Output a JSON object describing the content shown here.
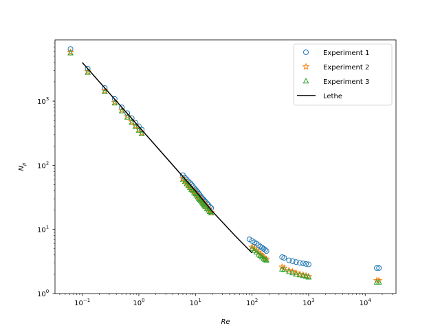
{
  "chart_data": {
    "type": "scatter",
    "title": "",
    "xlabel": "Re",
    "ylabel": "N_p",
    "xscale": "log",
    "yscale": "log",
    "xlim": [
      0.033,
      35000
    ],
    "ylim": [
      1,
      9000
    ],
    "x_ticks": [
      {
        "value": 0.1,
        "base": "10",
        "exp": "−1"
      },
      {
        "value": 1,
        "base": "10",
        "exp": "0"
      },
      {
        "value": 10,
        "base": "10",
        "exp": "1"
      },
      {
        "value": 100,
        "base": "10",
        "exp": "2"
      },
      {
        "value": 1000,
        "base": "10",
        "exp": "3"
      },
      {
        "value": 10000,
        "base": "10",
        "exp": "4"
      }
    ],
    "y_ticks": [
      {
        "value": 1,
        "base": "10",
        "exp": "0"
      },
      {
        "value": 10,
        "base": "10",
        "exp": "1"
      },
      {
        "value": 100,
        "base": "10",
        "exp": "2"
      },
      {
        "value": 1000,
        "base": "10",
        "exp": "3"
      }
    ],
    "grid": false,
    "legend_position": "top-right",
    "series": [
      {
        "name": "Experiment 1",
        "marker": "circle",
        "color": "#1f77b4",
        "points": [
          [
            0.062,
            6500
          ],
          [
            0.125,
            3200
          ],
          [
            0.25,
            1600
          ],
          [
            0.375,
            1080
          ],
          [
            0.5,
            800
          ],
          [
            0.625,
            650
          ],
          [
            0.75,
            540
          ],
          [
            0.875,
            460
          ],
          [
            1.0,
            405
          ],
          [
            1.125,
            360
          ],
          [
            6.0,
            70
          ],
          [
            6.5,
            64
          ],
          [
            7.0,
            60
          ],
          [
            7.5,
            56
          ],
          [
            8.0,
            53
          ],
          [
            8.5,
            50
          ],
          [
            9.0,
            47
          ],
          [
            9.5,
            44
          ],
          [
            10.0,
            42
          ],
          [
            10.5,
            40
          ],
          [
            11.0,
            38
          ],
          [
            11.5,
            36
          ],
          [
            12.0,
            34
          ],
          [
            12.5,
            32.5
          ],
          [
            13.0,
            31
          ],
          [
            13.5,
            30
          ],
          [
            14.0,
            29
          ],
          [
            14.5,
            28
          ],
          [
            15.0,
            27
          ],
          [
            16.0,
            25.5
          ],
          [
            17.0,
            24
          ],
          [
            18.0,
            22.5
          ],
          [
            19.0,
            21.5
          ],
          [
            90,
            7.0
          ],
          [
            100,
            6.6
          ],
          [
            110,
            6.3
          ],
          [
            120,
            6.0
          ],
          [
            130,
            5.7
          ],
          [
            140,
            5.4
          ],
          [
            150,
            5.2
          ],
          [
            160,
            5.0
          ],
          [
            170,
            4.8
          ],
          [
            180,
            4.6
          ],
          [
            340,
            3.7
          ],
          [
            370,
            3.6
          ],
          [
            450,
            3.3
          ],
          [
            520,
            3.2
          ],
          [
            600,
            3.1
          ],
          [
            700,
            3.0
          ],
          [
            800,
            2.95
          ],
          [
            900,
            2.9
          ],
          [
            1000,
            2.85
          ],
          [
            16000,
            2.5
          ],
          [
            17500,
            2.5
          ]
        ]
      },
      {
        "name": "Experiment 2",
        "marker": "star",
        "color": "#ff7f0e",
        "points": [
          [
            0.062,
            5800
          ],
          [
            0.125,
            2900
          ],
          [
            0.25,
            1450
          ],
          [
            0.375,
            960
          ],
          [
            0.5,
            720
          ],
          [
            0.625,
            580
          ],
          [
            0.75,
            480
          ],
          [
            0.875,
            410
          ],
          [
            1.0,
            360
          ],
          [
            1.125,
            320
          ],
          [
            6.0,
            62
          ],
          [
            6.5,
            57
          ],
          [
            7.0,
            53
          ],
          [
            7.5,
            49
          ],
          [
            8.0,
            46
          ],
          [
            8.5,
            43
          ],
          [
            9.0,
            41
          ],
          [
            9.5,
            39
          ],
          [
            10.0,
            37
          ],
          [
            10.5,
            35
          ],
          [
            11.0,
            33
          ],
          [
            11.5,
            31.5
          ],
          [
            12.0,
            30
          ],
          [
            12.5,
            29
          ],
          [
            13.0,
            27.5
          ],
          [
            13.5,
            26.5
          ],
          [
            14.0,
            25.5
          ],
          [
            14.5,
            24.5
          ],
          [
            15.0,
            23.5
          ],
          [
            16.0,
            22
          ],
          [
            17.0,
            21
          ],
          [
            18.0,
            19.5
          ],
          [
            19.0,
            18.5
          ],
          [
            100,
            5.3
          ],
          [
            110,
            5.0
          ],
          [
            120,
            4.7
          ],
          [
            130,
            4.4
          ],
          [
            140,
            4.1
          ],
          [
            150,
            3.9
          ],
          [
            160,
            3.7
          ],
          [
            170,
            3.5
          ],
          [
            180,
            3.4
          ],
          [
            340,
            2.6
          ],
          [
            370,
            2.5
          ],
          [
            450,
            2.3
          ],
          [
            520,
            2.2
          ],
          [
            600,
            2.1
          ],
          [
            700,
            2.0
          ],
          [
            800,
            1.95
          ],
          [
            900,
            1.9
          ],
          [
            1000,
            1.85
          ],
          [
            16000,
            1.6
          ],
          [
            17500,
            1.6
          ]
        ]
      },
      {
        "name": "Experiment 3",
        "marker": "triangle",
        "color": "#2ca02c",
        "points": [
          [
            0.062,
            5600
          ],
          [
            0.125,
            2800
          ],
          [
            0.25,
            1400
          ],
          [
            0.375,
            930
          ],
          [
            0.5,
            700
          ],
          [
            0.625,
            560
          ],
          [
            0.75,
            465
          ],
          [
            0.875,
            400
          ],
          [
            1.0,
            350
          ],
          [
            1.125,
            310
          ],
          [
            6.0,
            60
          ],
          [
            6.5,
            55
          ],
          [
            7.0,
            51
          ],
          [
            7.5,
            48
          ],
          [
            8.0,
            45
          ],
          [
            8.5,
            42
          ],
          [
            9.0,
            40
          ],
          [
            9.5,
            38
          ],
          [
            10.0,
            36
          ],
          [
            10.5,
            34
          ],
          [
            11.0,
            32
          ],
          [
            11.5,
            30.5
          ],
          [
            12.0,
            29
          ],
          [
            12.5,
            28
          ],
          [
            13.0,
            26.5
          ],
          [
            13.5,
            25.5
          ],
          [
            14.0,
            24.5
          ],
          [
            14.5,
            23.5
          ],
          [
            15.0,
            22.5
          ],
          [
            16.0,
            21
          ],
          [
            17.0,
            20
          ],
          [
            18.0,
            19
          ],
          [
            19.0,
            18
          ],
          [
            100,
            5.0
          ],
          [
            110,
            4.7
          ],
          [
            120,
            4.4
          ],
          [
            130,
            4.1
          ],
          [
            140,
            3.9
          ],
          [
            150,
            3.7
          ],
          [
            160,
            3.5
          ],
          [
            170,
            3.4
          ],
          [
            180,
            3.3
          ],
          [
            340,
            2.4
          ],
          [
            370,
            2.35
          ],
          [
            450,
            2.2
          ],
          [
            520,
            2.1
          ],
          [
            600,
            2.0
          ],
          [
            700,
            1.95
          ],
          [
            800,
            1.9
          ],
          [
            900,
            1.85
          ],
          [
            1000,
            1.8
          ],
          [
            16000,
            1.5
          ],
          [
            17500,
            1.5
          ]
        ]
      }
    ],
    "lines": [
      {
        "name": "Lethe",
        "color": "#000000",
        "points": [
          [
            0.1,
            4000
          ],
          [
            1,
            400
          ],
          [
            10,
            40
          ],
          [
            20,
            19
          ],
          [
            50,
            8
          ],
          [
            100,
            4.3
          ]
        ]
      }
    ]
  }
}
